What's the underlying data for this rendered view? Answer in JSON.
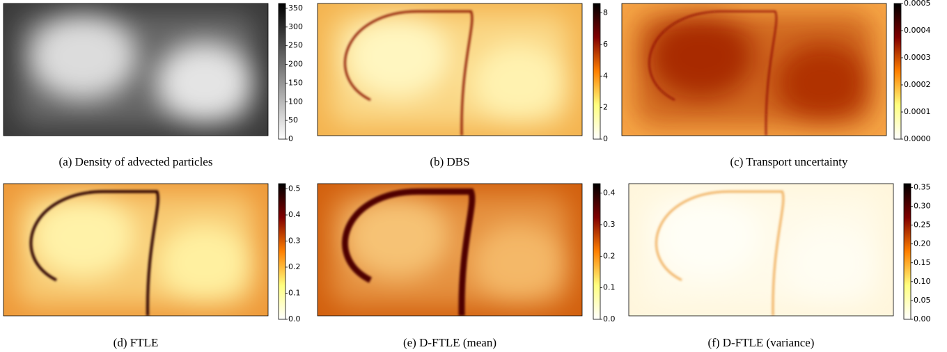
{
  "chart_data": [
    {
      "type": "heatmap",
      "caption": "(a) Density of advected particles",
      "colormap": "gray_r",
      "clim": [
        0,
        363
      ],
      "cticks": [
        0,
        50,
        100,
        150,
        200,
        250,
        300,
        350
      ]
    },
    {
      "type": "heatmap",
      "caption": "(b) DBS",
      "colormap": "afmhot_r",
      "clim": [
        0,
        8.6
      ],
      "cticks": [
        0,
        2,
        4,
        6,
        8
      ]
    },
    {
      "type": "heatmap",
      "caption": "(c) Transport uncertainty",
      "colormap": "afmhot_r",
      "clim": [
        0,
        0.0005
      ],
      "cticks": [
        {
          "value": 0,
          "label": "0.0000"
        },
        0.0001,
        0.0002,
        0.0003,
        0.0004,
        0.0005
      ]
    },
    {
      "type": "heatmap",
      "caption": "(d) FTLE",
      "colormap": "afmhot_r",
      "clim": [
        0,
        0.52
      ],
      "cticks": [
        {
          "value": 0,
          "label": "0.0"
        },
        0.1,
        0.2,
        0.3,
        0.4,
        0.5
      ]
    },
    {
      "type": "heatmap",
      "caption": "(e) D-FTLE (mean)",
      "colormap": "afmhot_r",
      "clim": [
        0,
        0.43
      ],
      "cticks": [
        {
          "value": 0,
          "label": "0.0"
        },
        0.1,
        0.2,
        0.3,
        0.4
      ]
    },
    {
      "type": "heatmap",
      "caption": "(f) D-FTLE (variance)",
      "colormap": "afmhot_r",
      "clim": [
        0,
        0.36
      ],
      "cticks": [
        {
          "value": 0,
          "label": "0.00"
        },
        0.05,
        {
          "value": 0.1,
          "label": "0.10"
        },
        0.15,
        {
          "value": 0.2,
          "label": "0.20"
        },
        0.25,
        {
          "value": 0.3,
          "label": "0.30"
        },
        0.35
      ]
    }
  ]
}
